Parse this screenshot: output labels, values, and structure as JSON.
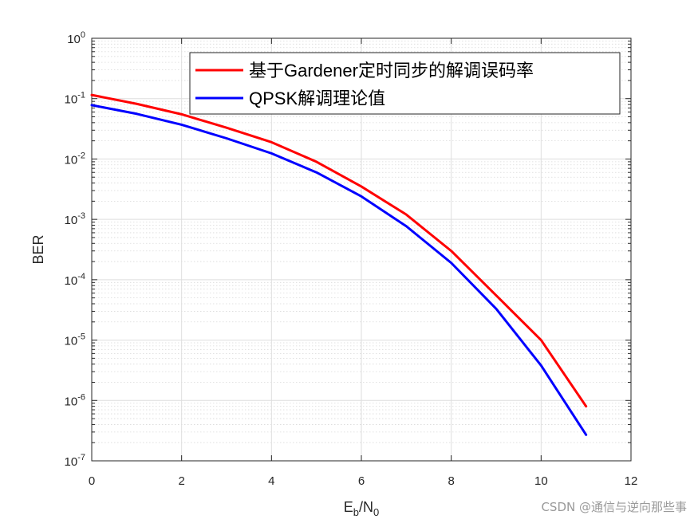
{
  "chart_data": {
    "type": "line",
    "title": "",
    "xlabel": {
      "main": "E",
      "sub1": "b",
      "mid": "/N",
      "sub2": "0"
    },
    "ylabel": "BER",
    "xlim": [
      0,
      12
    ],
    "ylim": [
      1e-07,
      1
    ],
    "yscale": "log",
    "grid": true,
    "legend_position": "top-right",
    "x_ticks": [
      0,
      2,
      4,
      6,
      8,
      10,
      12
    ],
    "y_tick_exponents": [
      0,
      -1,
      -2,
      -3,
      -4,
      -5,
      -6,
      -7
    ],
    "y_tick_base": "10",
    "x": [
      0,
      1,
      2,
      3,
      4,
      5,
      6,
      7,
      8,
      9,
      10,
      11
    ],
    "series": [
      {
        "name": "基于Gardener定时同步的解调误码率",
        "color": "#ff0000",
        "values": [
          0.115,
          0.082,
          0.055,
          0.033,
          0.019,
          0.009,
          0.0035,
          0.0012,
          0.0003,
          5.5e-05,
          1e-05,
          8e-07
        ]
      },
      {
        "name": "QPSK解调理论值",
        "color": "#0000ff",
        "values": [
          0.078,
          0.056,
          0.037,
          0.022,
          0.0124,
          0.006,
          0.0024,
          0.00077,
          0.00019,
          3.3e-05,
          3.8e-06,
          2.7e-07
        ]
      }
    ]
  },
  "watermark": "CSDN @通信与逆向那些事"
}
